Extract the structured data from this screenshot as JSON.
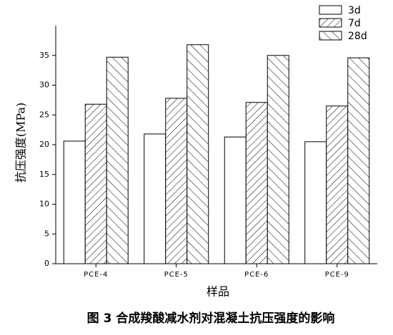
{
  "chart_data": {
    "type": "bar",
    "caption": "图 3  合成羧酸减水剂对混凝土抗压强度的影响",
    "xlabel": "样品",
    "ylabel": "抗压强度(MPa)",
    "categories": [
      "PCE-4",
      "PCE-5",
      "PCE-6",
      "PCE-9"
    ],
    "series": [
      {
        "name": "3d",
        "color": "#ffffff",
        "hatch": "none",
        "values": [
          20.6,
          21.8,
          21.3,
          20.5
        ]
      },
      {
        "name": "7d",
        "color": "#ffffff",
        "hatch": "/",
        "values": [
          26.8,
          27.8,
          27.1,
          26.5
        ]
      },
      {
        "name": "28d",
        "color": "#ffffff",
        "hatch": "\\",
        "values": [
          34.7,
          36.8,
          35.0,
          34.6
        ]
      }
    ],
    "ylim": [
      0,
      40
    ],
    "yticks": [
      0,
      5,
      10,
      15,
      20,
      25,
      30,
      35
    ],
    "legend": "upper right"
  }
}
